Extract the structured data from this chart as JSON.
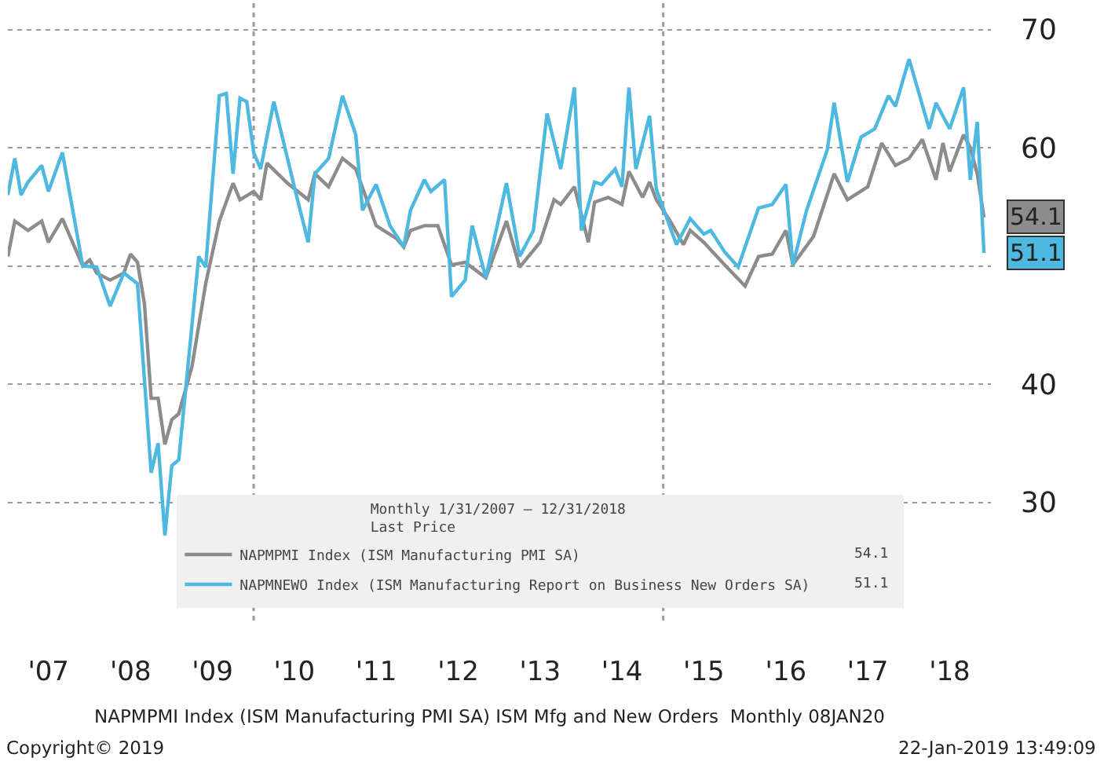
{
  "chart_data": {
    "type": "line",
    "xlim": [
      "2007-01-01",
      "2019-01-01"
    ],
    "xticks": [
      {
        "value": "2007-07-01",
        "label": "'07"
      },
      {
        "value": "2008-07-01",
        "label": "'08"
      },
      {
        "value": "2009-07-01",
        "label": "'09"
      },
      {
        "value": "2010-07-01",
        "label": "'10"
      },
      {
        "value": "2011-07-01",
        "label": "'11"
      },
      {
        "value": "2012-07-01",
        "label": "'12"
      },
      {
        "value": "2013-07-01",
        "label": "'13"
      },
      {
        "value": "2014-07-01",
        "label": "'14"
      },
      {
        "value": "2015-07-01",
        "label": "'15"
      },
      {
        "value": "2016-07-01",
        "label": "'16"
      },
      {
        "value": "2017-07-01",
        "label": "'17"
      },
      {
        "value": "2018-07-01",
        "label": "'18"
      }
    ],
    "ylim": [
      20,
      72.5
    ],
    "yticks": [
      30,
      40,
      {
        "value": 50,
        "label": null
      },
      60,
      70
    ],
    "grid": "y",
    "legend": "bottom",
    "line_style": "solid",
    "marker": "none",
    "legend_title": "Monthly 1/31/2007 – 12/31/2018\nLast Price",
    "ref_lines": [
      {
        "axis": "x",
        "value": "2010-01-01",
        "color": "#9a9a9a",
        "line_style": "dotted"
      },
      {
        "axis": "x",
        "value": "2015-01-01",
        "color": "#9a9a9a",
        "line_style": "dotted"
      }
    ],
    "series": [
      {
        "name": "NAPMPMI Index (ISM Manufacturing PMI SA)",
        "color": "#8c8c8c",
        "x": [
          "2007-01",
          "2007-02",
          "2007-04",
          "2007-06",
          "2007-07",
          "2007-09",
          "2007-12",
          "2008-01",
          "2008-02",
          "2008-04",
          "2008-06",
          "2008-07",
          "2008-08",
          "2008-09",
          "2008-10",
          "2008-11",
          "2008-12",
          "2009-01",
          "2009-02",
          "2009-04",
          "2009-06",
          "2009-08",
          "2009-10",
          "2009-11",
          "2010-01",
          "2010-02",
          "2010-03",
          "2010-06",
          "2010-09",
          "2010-10",
          "2010-12",
          "2011-02",
          "2011-04",
          "2011-06",
          "2011-07",
          "2011-10",
          "2011-11",
          "2011-12",
          "2012-02",
          "2012-04",
          "2012-06",
          "2012-08",
          "2012-11",
          "2013-02",
          "2013-04",
          "2013-07",
          "2013-09",
          "2013-10",
          "2013-12",
          "2014-02",
          "2014-03",
          "2014-05",
          "2014-07",
          "2014-08",
          "2014-10",
          "2014-11",
          "2014-12",
          "2015-02",
          "2015-04",
          "2015-05",
          "2015-07",
          "2015-10",
          "2016-01",
          "2016-03",
          "2016-05",
          "2016-07",
          "2016-08",
          "2016-11",
          "2017-02",
          "2017-04",
          "2017-07",
          "2017-09",
          "2017-11",
          "2018-01",
          "2018-03",
          "2018-05",
          "2018-06",
          "2018-07",
          "2018-09",
          "2018-10",
          "2018-11",
          "2018-12"
        ],
        "values": [
          50.8,
          53.8,
          53.0,
          53.8,
          52.0,
          54.0,
          50.0,
          50.5,
          49.4,
          48.8,
          49.4,
          51.0,
          50.3,
          46.8,
          38.8,
          38.8,
          34.9,
          37.0,
          37.5,
          41.5,
          48.5,
          53.8,
          57.0,
          55.6,
          56.3,
          55.6,
          58.7,
          57.0,
          55.6,
          57.8,
          56.7,
          59.1,
          58.2,
          55.0,
          53.4,
          52.3,
          51.6,
          53.0,
          53.4,
          53.4,
          50.1,
          50.3,
          49.0,
          53.8,
          49.9,
          52.0,
          55.6,
          55.2,
          56.7,
          52.0,
          55.4,
          55.8,
          55.2,
          58.0,
          55.8,
          57.1,
          55.6,
          53.8,
          51.8,
          53.0,
          52.0,
          50.1,
          48.3,
          50.8,
          51.0,
          53.0,
          50.1,
          52.5,
          57.8,
          55.6,
          56.7,
          60.4,
          58.5,
          59.1,
          60.7,
          57.3,
          60.4,
          58.0,
          61.1,
          60.0,
          57.8,
          54.1
        ]
      },
      {
        "name": "NAPMNEWO Index (ISM Manufacturing Report on Business New Orders SA)",
        "color": "#4db8e0",
        "x": [
          "2007-01",
          "2007-02",
          "2007-03",
          "2007-04",
          "2007-06",
          "2007-07",
          "2007-09",
          "2007-12",
          "2008-02",
          "2008-04",
          "2008-06",
          "2008-08",
          "2008-10",
          "2008-11",
          "2008-12",
          "2009-01",
          "2009-02",
          "2009-05",
          "2009-06",
          "2009-08",
          "2009-09",
          "2009-10",
          "2009-11",
          "2009-12",
          "2010-01",
          "2010-02",
          "2010-04",
          "2010-07",
          "2010-09",
          "2010-10",
          "2010-12",
          "2011-02",
          "2011-04",
          "2011-05",
          "2011-07",
          "2011-09",
          "2011-11",
          "2011-12",
          "2012-02",
          "2012-03",
          "2012-05",
          "2012-06",
          "2012-08",
          "2012-09",
          "2012-11",
          "2013-02",
          "2013-04",
          "2013-06",
          "2013-08",
          "2013-10",
          "2013-12",
          "2014-01",
          "2014-03",
          "2014-04",
          "2014-06",
          "2014-07",
          "2014-08",
          "2014-09",
          "2014-11",
          "2014-12",
          "2015-03",
          "2015-05",
          "2015-07",
          "2015-08",
          "2015-10",
          "2015-12",
          "2016-03",
          "2016-05",
          "2016-07",
          "2016-08",
          "2016-10",
          "2017-01",
          "2017-02",
          "2017-04",
          "2017-06",
          "2017-08",
          "2017-10",
          "2017-11",
          "2018-01",
          "2018-04",
          "2018-05",
          "2018-07",
          "2018-09",
          "2018-10",
          "2018-11",
          "2018-12"
        ],
        "values": [
          56.0,
          59.1,
          56.0,
          57.1,
          58.5,
          56.3,
          59.6,
          50.0,
          49.9,
          46.6,
          49.4,
          48.5,
          32.5,
          35.0,
          27.2,
          33.1,
          33.6,
          50.8,
          49.9,
          64.4,
          64.6,
          57.8,
          64.2,
          63.9,
          59.6,
          58.2,
          63.9,
          56.7,
          52.0,
          57.8,
          59.1,
          64.4,
          61.1,
          54.7,
          56.9,
          53.4,
          51.6,
          54.7,
          57.3,
          56.3,
          57.3,
          47.4,
          48.8,
          53.4,
          49.0,
          57.0,
          50.8,
          53.0,
          62.9,
          58.2,
          65.1,
          53.0,
          57.1,
          56.9,
          58.2,
          56.7,
          65.1,
          58.2,
          62.7,
          56.5,
          51.8,
          54.0,
          52.7,
          53.0,
          51.2,
          49.9,
          54.9,
          55.2,
          56.9,
          50.1,
          54.7,
          59.8,
          63.8,
          57.1,
          60.9,
          61.6,
          64.4,
          63.5,
          67.5,
          61.6,
          63.8,
          61.6,
          65.1,
          57.3,
          62.2,
          51.1
        ]
      }
    ],
    "annotations": [
      {
        "text": "54.1",
        "x": "2018-12",
        "y": 54.1
      },
      {
        "text": "51.1",
        "x": "2018-12",
        "y": 51.1
      },
      "NAPMPMI Index (ISM Manufacturing PMI SA) ISM Mfg and New Orders  Monthly 08JAN20",
      "Copyright© 2019",
      "22-Jan-2019 13:49:09"
    ]
  }
}
